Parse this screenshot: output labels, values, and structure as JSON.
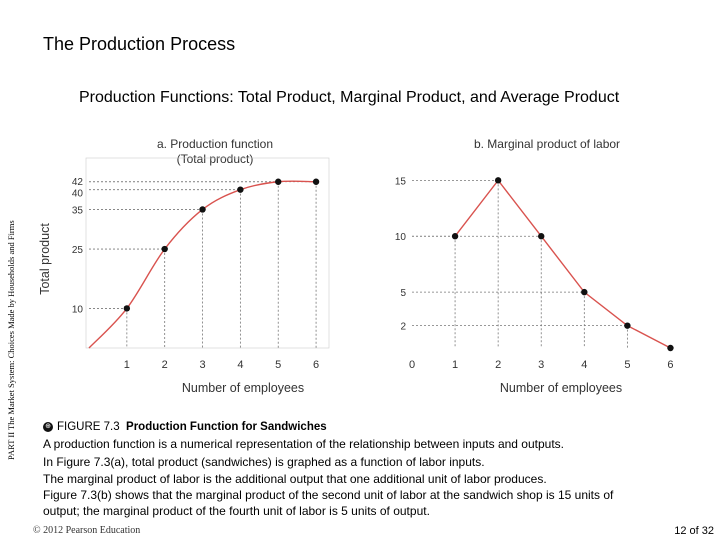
{
  "slide": {
    "title": "The Production Process",
    "subtitle": "Production Functions: Total Product, Marginal Product, and Average Product",
    "side_label": "PART II  The Market System: Choices Made by Households and Firms",
    "copyright": "© 2012 Pearson Education",
    "page": "12 of 32"
  },
  "caption": {
    "figure_number": "FIGURE 7.3",
    "figure_title": "Production Function for Sandwiches",
    "lines": [
      "A production function is a numerical representation of the relationship between inputs and outputs.",
      "In Figure 7.3(a), total product (sandwiches) is graphed as a function of labor inputs.",
      "The marginal product of labor is the additional output that one additional unit of labor produces.",
      "Figure 7.3(b) shows that the marginal product of the second unit of labor at the sandwich shop is 15 units of",
      "output; the marginal product of the fourth unit of labor is 5 units of output."
    ]
  },
  "colors": {
    "curve": "#d9534f",
    "point": "#111111",
    "axis": "#444444",
    "guide": "#777777"
  },
  "chart_data": [
    {
      "type": "line",
      "title": "a. Production function",
      "subtitle": "(Total product)",
      "xlabel": "Number of employees",
      "ylabel": "Total product",
      "x_ticks": [
        "1",
        "2",
        "3",
        "4",
        "5",
        "6"
      ],
      "y_ticks": [
        "10",
        "25",
        "35",
        "40",
        "42"
      ],
      "xlim": [
        0,
        6.5
      ],
      "ylim": [
        0,
        48
      ],
      "points": [
        {
          "x": 1,
          "y": 10
        },
        {
          "x": 2,
          "y": 25
        },
        {
          "x": 3,
          "y": 35
        },
        {
          "x": 4,
          "y": 40
        },
        {
          "x": 5,
          "y": 42
        },
        {
          "x": 6,
          "y": 42
        }
      ],
      "curve": [
        {
          "x": 0,
          "y": 0
        },
        {
          "x": 1,
          "y": 10
        },
        {
          "x": 2,
          "y": 25
        },
        {
          "x": 3,
          "y": 35
        },
        {
          "x": 4,
          "y": 40
        },
        {
          "x": 5,
          "y": 42
        },
        {
          "x": 6,
          "y": 42
        }
      ],
      "grid": false
    },
    {
      "type": "line",
      "title": "b. Marginal product of labor",
      "xlabel": "Number of employees",
      "x_ticks": [
        "0",
        "1",
        "2",
        "3",
        "4",
        "5",
        "6"
      ],
      "y_ticks": [
        "2",
        "5",
        "10",
        "15"
      ],
      "xlim": [
        0,
        6.5
      ],
      "ylim": [
        0,
        17
      ],
      "points": [
        {
          "x": 1,
          "y": 10
        },
        {
          "x": 2,
          "y": 15
        },
        {
          "x": 3,
          "y": 10
        },
        {
          "x": 4,
          "y": 5
        },
        {
          "x": 5,
          "y": 2
        },
        {
          "x": 6,
          "y": 0
        }
      ],
      "grid": false
    }
  ]
}
